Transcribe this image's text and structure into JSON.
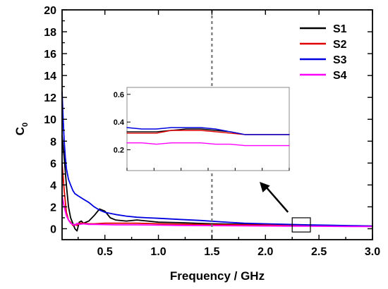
{
  "chart_data": {
    "type": "line",
    "xlabel": "Frequency / GHz",
    "ylabel": "C",
    "ylabel_sub": "0",
    "xlim": [
      0.1,
      3.0
    ],
    "ylim": [
      -1,
      20
    ],
    "xticks": [
      "0.5",
      "1.0",
      "1.5",
      "2.0",
      "2.5",
      "3.0"
    ],
    "yticks": [
      "0",
      "2",
      "4",
      "6",
      "8",
      "10",
      "12",
      "14",
      "16",
      "18",
      "20"
    ],
    "reference_line_x": 1.5,
    "legend_position": "top-right",
    "series": [
      {
        "name": "S1",
        "color": "#000000",
        "points": [
          [
            0.1,
            8.5
          ],
          [
            0.12,
            6.5
          ],
          [
            0.14,
            4.0
          ],
          [
            0.16,
            2.0
          ],
          [
            0.18,
            1.0
          ],
          [
            0.2,
            0.5
          ],
          [
            0.22,
            0.0
          ],
          [
            0.24,
            -0.2
          ],
          [
            0.26,
            0.6
          ],
          [
            0.28,
            0.7
          ],
          [
            0.3,
            0.5
          ],
          [
            0.35,
            0.7
          ],
          [
            0.4,
            1.2
          ],
          [
            0.45,
            1.8
          ],
          [
            0.5,
            1.6
          ],
          [
            0.55,
            1.0
          ],
          [
            0.6,
            0.8
          ],
          [
            0.7,
            0.7
          ],
          [
            0.8,
            0.8
          ],
          [
            0.9,
            0.7
          ],
          [
            1.0,
            0.6
          ],
          [
            1.2,
            0.55
          ],
          [
            1.5,
            0.45
          ],
          [
            1.8,
            0.4
          ],
          [
            2.0,
            0.35
          ],
          [
            2.2,
            0.32
          ],
          [
            2.4,
            0.3
          ],
          [
            2.6,
            0.28
          ],
          [
            2.8,
            0.25
          ],
          [
            3.0,
            0.22
          ]
        ]
      },
      {
        "name": "S2",
        "color": "#e00000",
        "points": [
          [
            0.1,
            6.0
          ],
          [
            0.12,
            3.5
          ],
          [
            0.14,
            1.5
          ],
          [
            0.16,
            0.8
          ],
          [
            0.18,
            0.6
          ],
          [
            0.2,
            0.3
          ],
          [
            0.22,
            0.4
          ],
          [
            0.24,
            0.3
          ],
          [
            0.26,
            0.5
          ],
          [
            0.3,
            0.5
          ],
          [
            0.35,
            0.45
          ],
          [
            0.4,
            0.45
          ],
          [
            0.5,
            0.5
          ],
          [
            0.6,
            0.5
          ],
          [
            0.8,
            0.5
          ],
          [
            1.0,
            0.45
          ],
          [
            1.2,
            0.42
          ],
          [
            1.5,
            0.38
          ],
          [
            1.8,
            0.35
          ],
          [
            2.0,
            0.33
          ],
          [
            2.2,
            0.32
          ],
          [
            2.4,
            0.3
          ],
          [
            2.6,
            0.28
          ],
          [
            2.8,
            0.26
          ],
          [
            3.0,
            0.24
          ]
        ]
      },
      {
        "name": "S3",
        "color": "#0000e0",
        "points": [
          [
            0.1,
            12.5
          ],
          [
            0.11,
            10.0
          ],
          [
            0.12,
            8.0
          ],
          [
            0.13,
            6.5
          ],
          [
            0.14,
            5.5
          ],
          [
            0.16,
            4.5
          ],
          [
            0.18,
            4.0
          ],
          [
            0.2,
            3.5
          ],
          [
            0.22,
            3.2
          ],
          [
            0.25,
            3.0
          ],
          [
            0.3,
            2.7
          ],
          [
            0.35,
            2.4
          ],
          [
            0.4,
            2.0
          ],
          [
            0.45,
            1.7
          ],
          [
            0.5,
            1.5
          ],
          [
            0.6,
            1.3
          ],
          [
            0.7,
            1.15
          ],
          [
            0.8,
            1.05
          ],
          [
            0.9,
            1.0
          ],
          [
            1.0,
            0.95
          ],
          [
            1.2,
            0.85
          ],
          [
            1.4,
            0.75
          ],
          [
            1.6,
            0.62
          ],
          [
            1.8,
            0.5
          ],
          [
            2.0,
            0.45
          ],
          [
            2.2,
            0.4
          ],
          [
            2.4,
            0.35
          ],
          [
            2.6,
            0.32
          ],
          [
            2.8,
            0.28
          ],
          [
            3.0,
            0.25
          ]
        ]
      },
      {
        "name": "S4",
        "color": "#ff00ff",
        "points": [
          [
            0.1,
            3.0
          ],
          [
            0.12,
            2.0
          ],
          [
            0.14,
            1.2
          ],
          [
            0.16,
            0.8
          ],
          [
            0.18,
            0.5
          ],
          [
            0.2,
            0.4
          ],
          [
            0.22,
            0.3
          ],
          [
            0.24,
            0.5
          ],
          [
            0.26,
            0.4
          ],
          [
            0.3,
            0.45
          ],
          [
            0.35,
            0.4
          ],
          [
            0.4,
            0.4
          ],
          [
            0.5,
            0.38
          ],
          [
            0.6,
            0.35
          ],
          [
            0.8,
            0.35
          ],
          [
            1.0,
            0.33
          ],
          [
            1.2,
            0.3
          ],
          [
            1.5,
            0.28
          ],
          [
            1.8,
            0.26
          ],
          [
            2.0,
            0.25
          ],
          [
            2.2,
            0.24
          ],
          [
            2.4,
            0.23
          ],
          [
            2.6,
            0.22
          ],
          [
            2.8,
            0.2
          ],
          [
            3.0,
            0.2
          ]
        ]
      }
    ],
    "inset": {
      "zoom_xlim": [
        2.25,
        2.42
      ],
      "zoom_ylim": [
        0.05,
        0.65
      ],
      "yticks": [
        "0.2",
        "0.4",
        "0.6"
      ],
      "series": [
        {
          "name": "S1",
          "color": "#000000",
          "values": [
            0.33,
            0.33,
            0.33,
            0.34,
            0.35,
            0.35,
            0.34,
            0.33,
            0.31,
            0.31,
            0.31,
            0.31
          ]
        },
        {
          "name": "S2",
          "color": "#e00000",
          "values": [
            0.32,
            0.32,
            0.32,
            0.34,
            0.34,
            0.34,
            0.33,
            0.32,
            0.31,
            0.31,
            0.31,
            0.31
          ]
        },
        {
          "name": "S3",
          "color": "#0000e0",
          "values": [
            0.36,
            0.35,
            0.35,
            0.36,
            0.36,
            0.36,
            0.35,
            0.33,
            0.31,
            0.31,
            0.31,
            0.31
          ]
        },
        {
          "name": "S4",
          "color": "#ff00ff",
          "values": [
            0.25,
            0.25,
            0.24,
            0.25,
            0.25,
            0.25,
            0.24,
            0.24,
            0.23,
            0.23,
            0.23,
            0.23
          ]
        }
      ]
    }
  }
}
